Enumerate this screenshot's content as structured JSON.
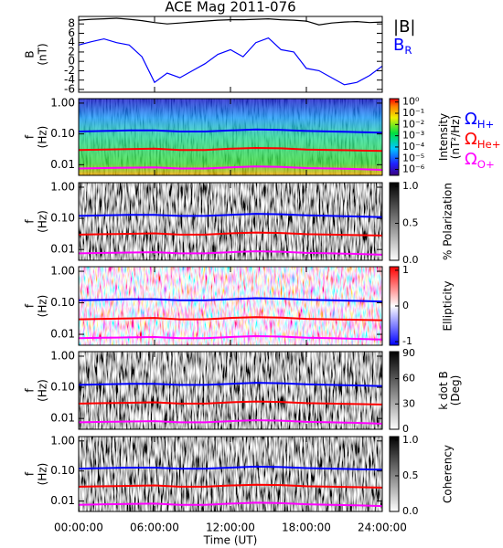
{
  "chart_data": [
    {
      "type": "line",
      "title": "ACE Mag 2011-076",
      "ylabel": [
        "B",
        "(nT)"
      ],
      "x": [
        0,
        1,
        2,
        3,
        4,
        5,
        6,
        7,
        8,
        9,
        10,
        11,
        12,
        13,
        14,
        15,
        16,
        17,
        18,
        19,
        20,
        21,
        22,
        23,
        24
      ],
      "series": [
        {
          "name": "|B|",
          "color": "#000000",
          "values": [
            8.8,
            9.0,
            9.1,
            9.2,
            9.0,
            8.7,
            8.3,
            8.0,
            8.2,
            8.4,
            8.6,
            8.8,
            8.9,
            8.9,
            9.0,
            9.1,
            8.9,
            8.8,
            8.6,
            7.8,
            8.2,
            8.4,
            8.5,
            8.3,
            8.4
          ]
        },
        {
          "name": "B",
          "name_sub": "R",
          "color": "#0000ff",
          "values": [
            3.5,
            4.2,
            4.8,
            4.0,
            3.5,
            1.0,
            -4.5,
            -2.5,
            -3.5,
            -2.0,
            -0.5,
            1.5,
            2.5,
            1.0,
            4.0,
            5.0,
            2.5,
            2.0,
            -1.5,
            -2.0,
            -3.5,
            -5.0,
            -4.5,
            -3.0,
            -1.0
          ]
        }
      ],
      "ylim": [
        -6.6,
        9.6
      ],
      "yticks": [
        -6,
        -4,
        -2,
        0,
        2,
        4,
        6,
        8
      ]
    },
    {
      "type": "spectrogram",
      "ylabel": [
        "f",
        "(Hz)"
      ],
      "log_y": true,
      "ylim": [
        0.0045,
        1.4
      ],
      "yticks": [
        0.01,
        {
          "value": 0.1,
          "label": "0.10"
        },
        {
          "value": 1,
          "label": "1.00"
        }
      ],
      "x": [
        0,
        2,
        4,
        6,
        8,
        10,
        12,
        14,
        16,
        18,
        20,
        22,
        24
      ],
      "series": [
        {
          "name": "Ω",
          "name_sub": "H+",
          "color": "#0000ff",
          "values": [
            0.12,
            0.125,
            0.13,
            0.13,
            0.12,
            0.12,
            0.13,
            0.14,
            0.135,
            0.125,
            0.12,
            0.115,
            0.11
          ]
        },
        {
          "name": "Ω",
          "name_sub": "He+",
          "color": "#ff0000",
          "values": [
            0.03,
            0.031,
            0.032,
            0.033,
            0.03,
            0.03,
            0.033,
            0.035,
            0.034,
            0.031,
            0.03,
            0.029,
            0.028
          ]
        },
        {
          "name": "Ω",
          "name_sub": "O+",
          "color": "#ff00ff",
          "values": [
            0.0075,
            0.0078,
            0.008,
            0.0082,
            0.0075,
            0.0075,
            0.0082,
            0.0088,
            0.0085,
            0.0078,
            0.0075,
            0.0072,
            0.0068
          ]
        }
      ],
      "colorbar": {
        "label": [
          "Intensity",
          "(nT²/Hz)"
        ],
        "colormap": "rainbow",
        "log": true,
        "lim": [
          3e-07,
          2
        ],
        "ticks": [
          {
            "value": 1,
            "label": "10⁰"
          },
          {
            "value": 0.1,
            "label": "10⁻¹"
          },
          {
            "value": 0.01,
            "label": "10⁻²"
          },
          {
            "value": 0.001,
            "label": "10⁻³"
          },
          {
            "value": 0.0001,
            "label": "10⁻⁴"
          },
          {
            "value": 1e-05,
            "label": "10⁻⁵"
          },
          {
            "value": 1e-06,
            "label": "10⁻⁶"
          }
        ]
      }
    },
    {
      "type": "spectrogram",
      "ylabel": [
        "f",
        "(Hz)"
      ],
      "log_y": true,
      "ylim": [
        0.0045,
        1.4
      ],
      "yticks": [
        0.01,
        {
          "value": 0.1,
          "label": "0.10"
        },
        {
          "value": 1,
          "label": "1.00"
        }
      ],
      "colorbar": {
        "label": [
          "% Polarization"
        ],
        "colormap": "gray",
        "lim": [
          0,
          1.05
        ],
        "ticks": [
          {
            "value": 0,
            "label": "0.0"
          },
          {
            "value": 0.5,
            "label": "0.5"
          },
          {
            "value": 1,
            "label": "1.0"
          }
        ]
      }
    },
    {
      "type": "spectrogram",
      "ylabel": [
        "f",
        "(Hz)"
      ],
      "log_y": true,
      "ylim": [
        0.0045,
        1.4
      ],
      "yticks": [
        0.01,
        {
          "value": 0.1,
          "label": "0.10"
        },
        {
          "value": 1,
          "label": "1.00"
        }
      ],
      "colorbar": {
        "label": [
          "Ellipticity"
        ],
        "colormap": "bwr",
        "lim": [
          -1.1,
          1.1
        ],
        "ticks": [
          -1,
          0,
          1
        ]
      }
    },
    {
      "type": "spectrogram",
      "ylabel": [
        "f",
        "(Hz)"
      ],
      "log_y": true,
      "ylim": [
        0.0045,
        1.4
      ],
      "yticks": [
        0.01,
        {
          "value": 0.1,
          "label": "0.10"
        },
        {
          "value": 1,
          "label": "1.00"
        }
      ],
      "colorbar": {
        "label": [
          "k dot B",
          "(Deg)"
        ],
        "colormap": "gray",
        "lim": [
          0,
          92
        ],
        "ticks": [
          0,
          30,
          60,
          90
        ]
      }
    },
    {
      "type": "spectrogram",
      "ylabel": [
        "f",
        "(Hz)"
      ],
      "log_y": true,
      "ylim": [
        0.0045,
        1.4
      ],
      "yticks": [
        0.01,
        {
          "value": 0.1,
          "label": "0.10"
        },
        {
          "value": 1,
          "label": "1.00"
        }
      ],
      "colorbar": {
        "label": [
          "Coherency"
        ],
        "colormap": "gray",
        "lim": [
          0,
          1.05
        ],
        "ticks": [
          {
            "value": 0,
            "label": "0.0"
          },
          {
            "value": 0.5,
            "label": "0.5"
          },
          {
            "value": 1,
            "label": "1.0"
          }
        ]
      },
      "xlabel": "Time (UT)",
      "xlim": [
        0,
        24
      ],
      "xticks": [
        {
          "value": 0,
          "label": "00:00:00"
        },
        {
          "value": 6,
          "label": "06:00:00"
        },
        {
          "value": 12,
          "label": "12:00:00"
        },
        {
          "value": 18,
          "label": "18:00:00"
        },
        {
          "value": 24,
          "label": "24:00:00"
        }
      ]
    }
  ]
}
